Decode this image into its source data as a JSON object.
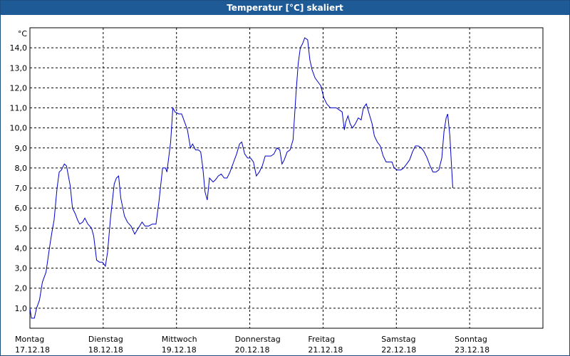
{
  "window": {
    "title": "Temperatur [°C] skaliert"
  },
  "chart_data": {
    "type": "line",
    "title": "Temperatur [°C] skaliert",
    "ylabel": "°C",
    "ylim": [
      0,
      15
    ],
    "yticks": [
      "1,0",
      "2,0",
      "3,0",
      "4,0",
      "5,0",
      "6,0",
      "7,0",
      "8,0",
      "9,0",
      "10,0",
      "11,0",
      "12,0",
      "13,0",
      "14,0"
    ],
    "xlim": [
      0,
      7
    ],
    "xticks": [
      {
        "day": "Montag",
        "date": "17.12.18"
      },
      {
        "day": "Dienstag",
        "date": "18.12.18"
      },
      {
        "day": "Mittwoch",
        "date": "19.12.18"
      },
      {
        "day": "Donnerstag",
        "date": "20.12.18"
      },
      {
        "day": "Freitag",
        "date": "21.12.18"
      },
      {
        "day": "Samstag",
        "date": "22.12.18"
      },
      {
        "day": "Sonntag",
        "date": "23.12.18"
      }
    ],
    "grid": true,
    "line_color": "#0000c8",
    "series": [
      {
        "values": [
          [
            0.0,
            1.0
          ],
          [
            0.02,
            0.5
          ],
          [
            0.06,
            0.5
          ],
          [
            0.09,
            1.0
          ],
          [
            0.13,
            1.4
          ],
          [
            0.17,
            2.3
          ],
          [
            0.22,
            2.8
          ],
          [
            0.27,
            4.1
          ],
          [
            0.3,
            4.8
          ],
          [
            0.33,
            5.4
          ],
          [
            0.37,
            7.0
          ],
          [
            0.4,
            7.8
          ],
          [
            0.43,
            7.9
          ],
          [
            0.47,
            8.2
          ],
          [
            0.5,
            8.1
          ],
          [
            0.55,
            7.1
          ],
          [
            0.58,
            6.0
          ],
          [
            0.62,
            5.7
          ],
          [
            0.65,
            5.4
          ],
          [
            0.68,
            5.2
          ],
          [
            0.72,
            5.3
          ],
          [
            0.75,
            5.5
          ],
          [
            0.79,
            5.2
          ],
          [
            0.84,
            5.0
          ],
          [
            0.87,
            4.6
          ],
          [
            0.91,
            3.4
          ],
          [
            0.95,
            3.3
          ],
          [
            0.99,
            3.3
          ],
          [
            1.03,
            3.1
          ],
          [
            1.06,
            3.8
          ],
          [
            1.1,
            5.5
          ],
          [
            1.15,
            7.2
          ],
          [
            1.18,
            7.5
          ],
          [
            1.21,
            7.6
          ],
          [
            1.24,
            6.5
          ],
          [
            1.29,
            5.6
          ],
          [
            1.33,
            5.3
          ],
          [
            1.38,
            5.1
          ],
          [
            1.43,
            4.7
          ],
          [
            1.48,
            5.0
          ],
          [
            1.53,
            5.3
          ],
          [
            1.57,
            5.1
          ],
          [
            1.62,
            5.1
          ],
          [
            1.67,
            5.2
          ],
          [
            1.72,
            5.2
          ],
          [
            1.76,
            6.3
          ],
          [
            1.81,
            8.0
          ],
          [
            1.85,
            8.0
          ],
          [
            1.87,
            7.8
          ],
          [
            1.92,
            9.3
          ],
          [
            1.95,
            11.0
          ],
          [
            1.98,
            10.8
          ],
          [
            2.03,
            10.7
          ],
          [
            2.07,
            10.7
          ],
          [
            2.11,
            10.3
          ],
          [
            2.15,
            9.9
          ],
          [
            2.19,
            9.0
          ],
          [
            2.22,
            9.2
          ],
          [
            2.26,
            8.9
          ],
          [
            2.3,
            8.9
          ],
          [
            2.33,
            8.8
          ],
          [
            2.36,
            8.0
          ],
          [
            2.39,
            6.8
          ],
          [
            2.42,
            6.4
          ],
          [
            2.45,
            7.5
          ],
          [
            2.5,
            7.3
          ],
          [
            2.53,
            7.4
          ],
          [
            2.57,
            7.6
          ],
          [
            2.61,
            7.7
          ],
          [
            2.65,
            7.5
          ],
          [
            2.69,
            7.5
          ],
          [
            2.73,
            7.8
          ],
          [
            2.78,
            8.3
          ],
          [
            2.82,
            8.7
          ],
          [
            2.86,
            9.2
          ],
          [
            2.89,
            9.3
          ],
          [
            2.93,
            8.7
          ],
          [
            2.97,
            8.5
          ],
          [
            3.01,
            8.5
          ],
          [
            3.05,
            8.3
          ],
          [
            3.09,
            7.6
          ],
          [
            3.13,
            7.8
          ],
          [
            3.17,
            8.1
          ],
          [
            3.21,
            8.6
          ],
          [
            3.25,
            8.6
          ],
          [
            3.29,
            8.6
          ],
          [
            3.33,
            8.7
          ],
          [
            3.37,
            9.0
          ],
          [
            3.41,
            8.9
          ],
          [
            3.44,
            8.2
          ],
          [
            3.47,
            8.4
          ],
          [
            3.51,
            8.8
          ],
          [
            3.55,
            8.9
          ],
          [
            3.59,
            9.4
          ],
          [
            3.63,
            11.7
          ],
          [
            3.66,
            13.2
          ],
          [
            3.69,
            14.0
          ],
          [
            3.72,
            14.2
          ],
          [
            3.75,
            14.5
          ],
          [
            3.79,
            14.4
          ],
          [
            3.82,
            13.4
          ],
          [
            3.85,
            12.9
          ],
          [
            3.89,
            12.5
          ],
          [
            3.93,
            12.3
          ],
          [
            3.97,
            12.1
          ],
          [
            4.01,
            11.5
          ],
          [
            4.05,
            11.2
          ],
          [
            4.1,
            11.0
          ],
          [
            4.14,
            11.0
          ],
          [
            4.18,
            11.0
          ],
          [
            4.22,
            10.9
          ],
          [
            4.26,
            10.8
          ],
          [
            4.29,
            9.9
          ],
          [
            4.31,
            10.3
          ],
          [
            4.34,
            10.6
          ],
          [
            4.37,
            10.2
          ],
          [
            4.4,
            10.0
          ],
          [
            4.44,
            10.2
          ],
          [
            4.48,
            10.5
          ],
          [
            4.52,
            10.4
          ],
          [
            4.55,
            11.0
          ],
          [
            4.59,
            11.2
          ],
          [
            4.63,
            10.7
          ],
          [
            4.67,
            10.2
          ],
          [
            4.7,
            9.6
          ],
          [
            4.74,
            9.3
          ],
          [
            4.78,
            9.1
          ],
          [
            4.82,
            8.6
          ],
          [
            4.86,
            8.3
          ],
          [
            4.9,
            8.3
          ],
          [
            4.94,
            8.3
          ],
          [
            4.97,
            8.0
          ],
          [
            5.01,
            7.9
          ],
          [
            5.06,
            7.9
          ],
          [
            5.1,
            8.0
          ],
          [
            5.14,
            8.2
          ],
          [
            5.18,
            8.4
          ],
          [
            5.22,
            8.8
          ],
          [
            5.26,
            9.1
          ],
          [
            5.3,
            9.1
          ],
          [
            5.34,
            9.0
          ],
          [
            5.38,
            8.8
          ],
          [
            5.42,
            8.5
          ],
          [
            5.46,
            8.1
          ],
          [
            5.5,
            7.8
          ],
          [
            5.54,
            7.8
          ],
          [
            5.58,
            7.9
          ],
          [
            5.62,
            8.5
          ],
          [
            5.65,
            9.8
          ],
          [
            5.68,
            10.5
          ],
          [
            5.7,
            10.7
          ],
          [
            5.73,
            9.6
          ],
          [
            5.75,
            8.3
          ],
          [
            5.77,
            7.0
          ]
        ]
      }
    ]
  }
}
